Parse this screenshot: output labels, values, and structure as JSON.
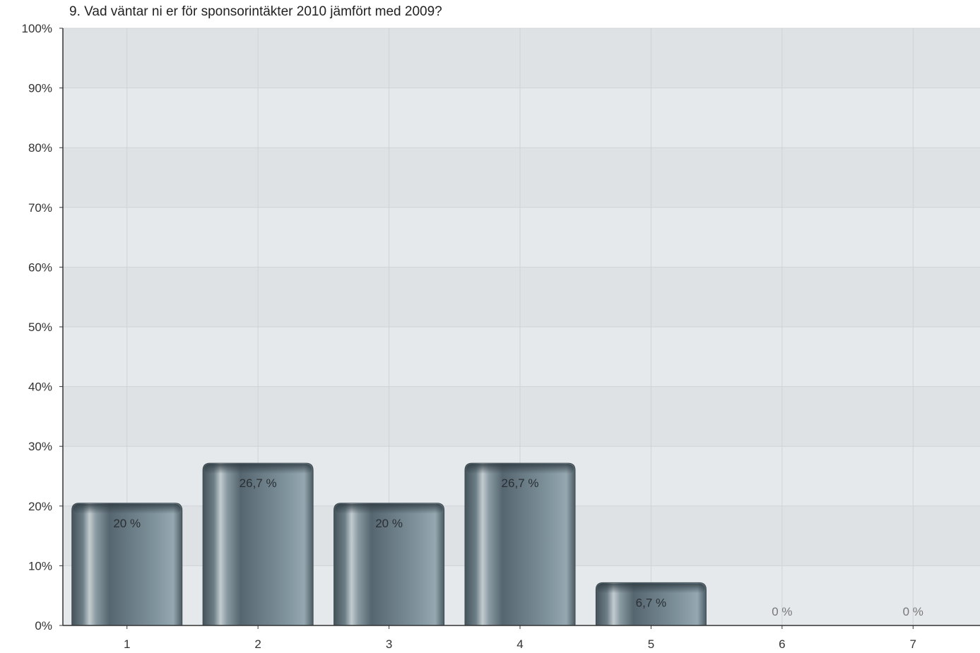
{
  "chart_data": {
    "type": "bar",
    "title": "9. Vad väntar ni er för sponsorintäkter 2010 jämfört med 2009?",
    "xlabel": "",
    "ylabel": "",
    "categories": [
      "1",
      "2",
      "3",
      "4",
      "5",
      "6",
      "7"
    ],
    "values": [
      20,
      26.7,
      20,
      26.7,
      6.7,
      0,
      0
    ],
    "value_labels": [
      "20 %",
      "26,7 %",
      "20 %",
      "26,7 %",
      "6,7 %",
      "0 %",
      "0 %"
    ],
    "ylim": [
      0,
      100
    ],
    "yticks": [
      0,
      10,
      20,
      30,
      40,
      50,
      60,
      70,
      80,
      90,
      100
    ],
    "ytick_labels": [
      "0%",
      "10%",
      "20%",
      "30%",
      "40%",
      "50%",
      "60%",
      "70%",
      "80%",
      "90%",
      "100%"
    ],
    "grid": true,
    "legend": "none",
    "colors": {
      "bar_dark": "#4a5a63",
      "bar_mid": "#7a8f9a",
      "bar_light": "#b9c6cc",
      "band_light": "#e6e9ec",
      "band_dark": "#dfe2e5",
      "grid": "#cfd3d6",
      "axis": "#333333"
    }
  }
}
